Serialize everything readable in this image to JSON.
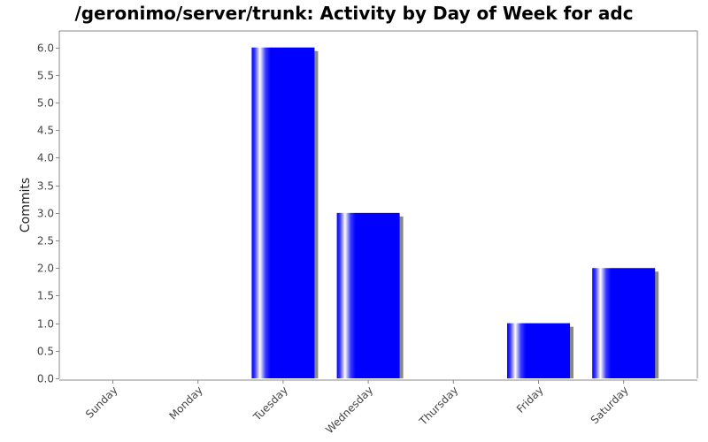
{
  "chart_data": {
    "type": "bar",
    "title": "/geronimo/server/trunk: Activity by Day of Week for adc",
    "xlabel": "",
    "ylabel": "Commits",
    "categories": [
      "Sunday",
      "Monday",
      "Tuesday",
      "Wednesday",
      "Thursday",
      "Friday",
      "Saturday"
    ],
    "values": [
      0,
      0,
      6,
      3,
      0,
      1,
      2
    ],
    "ylim": [
      0,
      6.3
    ],
    "yticks": [
      "0.0",
      "0.5",
      "1.0",
      "1.5",
      "2.0",
      "2.5",
      "3.0",
      "3.5",
      "4.0",
      "4.5",
      "5.0",
      "5.5",
      "6.0"
    ],
    "grid": false,
    "legend": "none",
    "colors": {
      "bar": "#0000ff",
      "bar_highlight": "#ffffff",
      "shadow": "#888888",
      "axis": "#888888"
    }
  }
}
